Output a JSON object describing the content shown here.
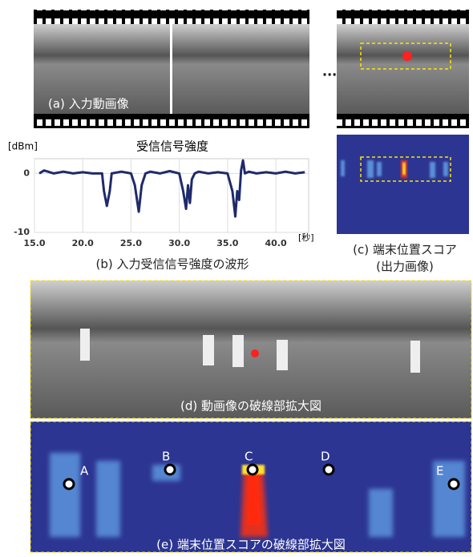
{
  "chart_data": {
    "type": "line",
    "title": "受信信号強度",
    "y_unit": "[dBm]",
    "x_unit": "[秒]",
    "x": [
      15.5,
      16,
      17,
      18,
      19,
      20,
      21,
      22,
      22.2,
      22.5,
      22.8,
      23,
      24,
      25,
      25.4,
      25.8,
      26.1,
      26.5,
      27,
      28,
      29,
      30,
      30.4,
      30.7,
      30.9,
      31.1,
      31.3,
      31.6,
      32,
      33,
      34,
      35,
      35.5,
      35.8,
      36.0,
      36.2,
      36.4,
      36.6,
      36.8,
      37.2,
      38,
      39,
      40,
      41,
      42,
      43
    ],
    "values": [
      0,
      0.5,
      0,
      0.3,
      0,
      0.2,
      0,
      0,
      -3,
      -5.5,
      -3,
      0,
      0.3,
      0,
      -2,
      -6.5,
      -2,
      0,
      0.3,
      0,
      0.4,
      0,
      -3,
      -6,
      -2,
      -5,
      -1,
      0,
      0.3,
      0,
      0.2,
      0,
      -3,
      -7.3,
      -3,
      -4.5,
      0.5,
      2.2,
      0,
      0.3,
      0,
      0.2,
      0,
      0.3,
      0,
      0.2
    ],
    "color": "#1f2a6b",
    "xlim": [
      15,
      43.4
    ],
    "ylim": [
      -10,
      2.5
    ],
    "xticks": [
      {
        "value": 15,
        "label": "15.0"
      },
      {
        "value": 20,
        "label": "20.0"
      },
      {
        "value": 25,
        "label": "25.0"
      },
      {
        "value": 30,
        "label": "30.0"
      },
      {
        "value": 35,
        "label": "35.0"
      },
      {
        "value": 40,
        "label": "40.0"
      }
    ],
    "yticks": [
      -10,
      0
    ],
    "grid": true
  },
  "figure": {
    "caption_a": "(a) 入力動画像",
    "ellipsis": "...",
    "caption_b": "(b) 入力受信信号強度の波形",
    "caption_c": [
      "(c) 端末位置スコア",
      "(出力画像)"
    ],
    "caption_d": "(d) 動画像の破線部拡大図",
    "caption_e": "(e) 端末位置スコアの破線部拡大図",
    "points": [
      "A",
      "B",
      "C",
      "D",
      "E"
    ]
  }
}
